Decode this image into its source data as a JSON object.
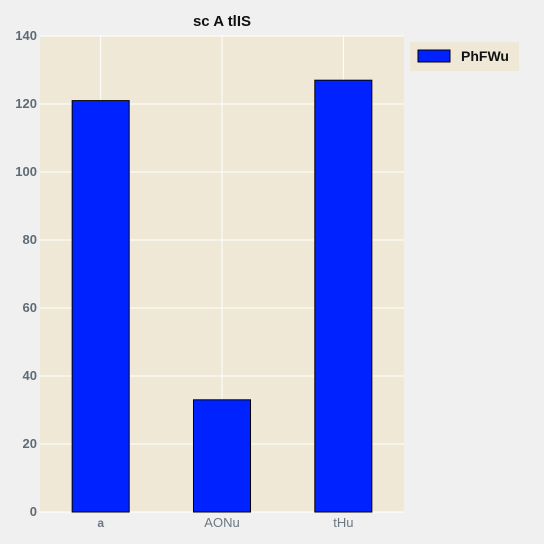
{
  "chart_data": {
    "type": "bar",
    "title": "sc  A tlIS",
    "categories": [
      "a",
      "AONu",
      "tHu"
    ],
    "series": [
      {
        "name": "PhFWu",
        "values": [
          121,
          33,
          127
        ]
      }
    ],
    "xlabel": "",
    "ylabel": "",
    "ylim": [
      0,
      140
    ],
    "yticks": [
      0,
      20,
      40,
      60,
      80,
      100,
      120,
      140
    ],
    "grid": true,
    "legend_position": "outside-right-top",
    "colors": {
      "bar": "#0022ff",
      "bar_edge": "#000000",
      "plot_background": "#efe8d6",
      "figure_background": "#f0f0f0",
      "grid": "#ffffff"
    }
  }
}
